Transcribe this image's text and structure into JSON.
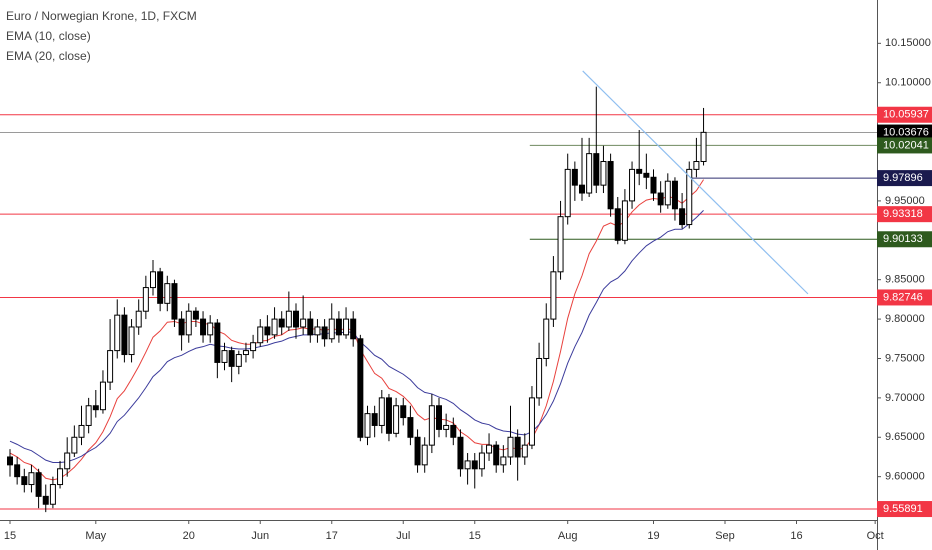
{
  "chart_data": {
    "type": "candlestick",
    "title": "Euro / Norwegian Krone, 1D, FXCM",
    "xlim": [
      -1,
      121.5
    ],
    "ylim": [
      9.545,
      10.205
    ],
    "yticks": [
      {
        "value": 10.15,
        "label": "10.15000"
      },
      {
        "value": 10.1,
        "label": "10.10000"
      },
      {
        "value": 9.95,
        "label": "9.95000"
      },
      {
        "value": 9.85,
        "label": "9.85000"
      },
      {
        "value": 9.8,
        "label": "9.80000"
      },
      {
        "value": 9.75,
        "label": "9.75000"
      },
      {
        "value": 9.7,
        "label": "9.70000"
      },
      {
        "value": 9.65,
        "label": "9.65000"
      },
      {
        "value": 9.6,
        "label": "9.60000"
      }
    ],
    "xticks": [
      {
        "value": 0,
        "label": "15"
      },
      {
        "value": 12,
        "label": "May"
      },
      {
        "value": 25,
        "label": "20"
      },
      {
        "value": 35,
        "label": "Jun"
      },
      {
        "value": 45,
        "label": "17"
      },
      {
        "value": 55,
        "label": "Jul"
      },
      {
        "value": 65,
        "label": "15"
      },
      {
        "value": 78,
        "label": "Aug"
      },
      {
        "value": 90,
        "label": "19"
      },
      {
        "value": 100,
        "label": "Sep"
      },
      {
        "value": 110,
        "label": "16"
      },
      {
        "value": 121,
        "label": "Oct"
      }
    ],
    "up_color": "#ffffff",
    "down_color": "#000000",
    "candles": [
      [
        9.625,
        9.635,
        9.6,
        9.615
      ],
      [
        9.615,
        9.625,
        9.59,
        9.6
      ],
      [
        9.6,
        9.61,
        9.58,
        9.59
      ],
      [
        9.59,
        9.615,
        9.58,
        9.605
      ],
      [
        9.605,
        9.61,
        9.56,
        9.575
      ],
      [
        9.575,
        9.59,
        9.555,
        9.565
      ],
      [
        9.565,
        9.6,
        9.56,
        9.59
      ],
      [
        9.59,
        9.62,
        9.585,
        9.61
      ],
      [
        9.61,
        9.65,
        9.6,
        9.63
      ],
      [
        9.63,
        9.665,
        9.625,
        9.65
      ],
      [
        9.65,
        9.69,
        9.64,
        9.665
      ],
      [
        9.665,
        9.7,
        9.655,
        9.69
      ],
      [
        9.69,
        9.71,
        9.675,
        9.685
      ],
      [
        9.685,
        9.735,
        9.68,
        9.72
      ],
      [
        9.72,
        9.8,
        9.71,
        9.76
      ],
      [
        9.76,
        9.825,
        9.75,
        9.805
      ],
      [
        9.805,
        9.815,
        9.745,
        9.755
      ],
      [
        9.755,
        9.8,
        9.745,
        9.79
      ],
      [
        9.79,
        9.825,
        9.78,
        9.81
      ],
      [
        9.81,
        9.855,
        9.8,
        9.84
      ],
      [
        9.84,
        9.875,
        9.83,
        9.86
      ],
      [
        9.86,
        9.865,
        9.81,
        9.82
      ],
      [
        9.82,
        9.855,
        9.81,
        9.845
      ],
      [
        9.845,
        9.85,
        9.79,
        9.8
      ],
      [
        9.8,
        9.81,
        9.76,
        9.78
      ],
      [
        9.78,
        9.82,
        9.77,
        9.81
      ],
      [
        9.81,
        9.815,
        9.79,
        9.8
      ],
      [
        9.8,
        9.81,
        9.77,
        9.78
      ],
      [
        9.78,
        9.805,
        9.77,
        9.795
      ],
      [
        9.795,
        9.8,
        9.725,
        9.745
      ],
      [
        9.745,
        9.77,
        9.735,
        9.76
      ],
      [
        9.76,
        9.765,
        9.72,
        9.74
      ],
      [
        9.74,
        9.76,
        9.73,
        9.755
      ],
      [
        9.755,
        9.77,
        9.745,
        9.76
      ],
      [
        9.76,
        9.78,
        9.75,
        9.77
      ],
      [
        9.77,
        9.8,
        9.765,
        9.79
      ],
      [
        9.79,
        9.805,
        9.77,
        9.78
      ],
      [
        9.78,
        9.815,
        9.775,
        9.8
      ],
      [
        9.8,
        9.81,
        9.78,
        9.79
      ],
      [
        9.79,
        9.835,
        9.785,
        9.81
      ],
      [
        9.81,
        9.82,
        9.775,
        9.79
      ],
      [
        9.79,
        9.83,
        9.78,
        9.8
      ],
      [
        9.8,
        9.81,
        9.77,
        9.78
      ],
      [
        9.78,
        9.8,
        9.77,
        9.79
      ],
      [
        9.79,
        9.8,
        9.765,
        9.775
      ],
      [
        9.775,
        9.82,
        9.77,
        9.8
      ],
      [
        9.8,
        9.81,
        9.77,
        9.78
      ],
      [
        9.78,
        9.815,
        9.775,
        9.8
      ],
      [
        9.8,
        9.81,
        9.765,
        9.775
      ],
      [
        9.775,
        9.78,
        9.645,
        9.65
      ],
      [
        9.65,
        9.69,
        9.64,
        9.68
      ],
      [
        9.68,
        9.69,
        9.65,
        9.665
      ],
      [
        9.665,
        9.71,
        9.655,
        9.7
      ],
      [
        9.7,
        9.705,
        9.645,
        9.655
      ],
      [
        9.655,
        9.7,
        9.65,
        9.69
      ],
      [
        9.69,
        9.7,
        9.665,
        9.675
      ],
      [
        9.675,
        9.69,
        9.64,
        9.65
      ],
      [
        9.65,
        9.66,
        9.605,
        9.615
      ],
      [
        9.615,
        9.65,
        9.605,
        9.64
      ],
      [
        9.64,
        9.705,
        9.63,
        9.69
      ],
      [
        9.69,
        9.7,
        9.65,
        9.66
      ],
      [
        9.66,
        9.68,
        9.65,
        9.665
      ],
      [
        9.665,
        9.675,
        9.64,
        9.65
      ],
      [
        9.65,
        9.66,
        9.6,
        9.61
      ],
      [
        9.61,
        9.63,
        9.59,
        9.62
      ],
      [
        9.62,
        9.63,
        9.585,
        9.61
      ],
      [
        9.61,
        9.64,
        9.6,
        9.63
      ],
      [
        9.63,
        9.655,
        9.62,
        9.64
      ],
      [
        9.64,
        9.645,
        9.605,
        9.615
      ],
      [
        9.615,
        9.64,
        9.605,
        9.625
      ],
      [
        9.625,
        9.69,
        9.615,
        9.65
      ],
      [
        9.65,
        9.66,
        9.595,
        9.625
      ],
      [
        9.625,
        9.655,
        9.615,
        9.64
      ],
      [
        9.64,
        9.715,
        9.635,
        9.7
      ],
      [
        9.7,
        9.77,
        9.69,
        9.75
      ],
      [
        9.75,
        9.82,
        9.74,
        9.8
      ],
      [
        9.8,
        9.88,
        9.79,
        9.86
      ],
      [
        9.86,
        9.95,
        9.85,
        9.93
      ],
      [
        9.93,
        10.01,
        9.92,
        9.99
      ],
      [
        9.99,
        10.0,
        9.95,
        9.97
      ],
      [
        9.97,
        10.03,
        9.95,
        9.96
      ],
      [
        9.96,
        10.03,
        9.955,
        10.01
      ],
      [
        10.01,
        10.095,
        9.96,
        9.97
      ],
      [
        9.97,
        10.02,
        9.96,
        10.0
      ],
      [
        10.0,
        10.01,
        9.93,
        9.94
      ],
      [
        9.94,
        9.955,
        9.895,
        9.9
      ],
      [
        9.9,
        9.965,
        9.895,
        9.95
      ],
      [
        9.95,
        10.0,
        9.94,
        9.99
      ],
      [
        9.99,
        10.04,
        9.97,
        9.985
      ],
      [
        9.985,
        10.01,
        9.965,
        9.98
      ],
      [
        9.98,
        9.99,
        9.95,
        9.96
      ],
      [
        9.96,
        9.975,
        9.935,
        9.945
      ],
      [
        9.945,
        9.985,
        9.94,
        9.975
      ],
      [
        9.975,
        9.98,
        9.925,
        9.94
      ],
      [
        9.94,
        9.96,
        9.915,
        9.92
      ],
      [
        9.92,
        10.0,
        9.915,
        9.99
      ],
      [
        9.99,
        10.03,
        9.98,
        10.0
      ],
      [
        10.0,
        10.068,
        9.995,
        10.037
      ]
    ],
    "series": [
      {
        "name": "EMA (10, close)",
        "color": "#e8413d",
        "values": [
          9.63,
          9.625,
          9.618,
          9.615,
          9.607,
          9.598,
          9.596,
          9.598,
          9.604,
          9.612,
          9.622,
          9.634,
          9.643,
          9.657,
          9.676,
          9.699,
          9.709,
          9.724,
          9.74,
          9.758,
          9.777,
          9.785,
          9.796,
          9.797,
          9.794,
          9.797,
          9.797,
          9.794,
          9.794,
          9.785,
          9.781,
          9.773,
          9.77,
          9.768,
          9.768,
          9.772,
          9.773,
          9.778,
          9.78,
          9.786,
          9.787,
          9.789,
          9.787,
          9.788,
          9.785,
          9.788,
          9.786,
          9.788,
          9.786,
          9.761,
          9.746,
          9.731,
          9.725,
          9.712,
          9.708,
          9.702,
          9.693,
          9.679,
          9.672,
          9.675,
          9.673,
          9.672,
          9.668,
          9.657,
          9.651,
          9.643,
          9.641,
          9.641,
          9.636,
          9.634,
          9.637,
          9.635,
          9.636,
          9.648,
          9.666,
          9.69,
          9.721,
          9.759,
          9.801,
          9.832,
          9.855,
          9.883,
          9.899,
          9.918,
          9.922,
          9.918,
          9.924,
          9.936,
          9.945,
          9.951,
          9.953,
          9.952,
          9.956,
          9.953,
          9.947,
          9.955,
          9.963,
          9.977
        ]
      },
      {
        "name": "EMA (20, close)",
        "color": "#3c3c9c",
        "values": [
          9.645,
          9.641,
          9.636,
          9.633,
          9.627,
          9.621,
          9.618,
          9.618,
          9.619,
          9.622,
          9.626,
          9.632,
          9.637,
          9.645,
          9.655,
          9.67,
          9.678,
          9.689,
          9.7,
          9.713,
          9.727,
          9.735,
          9.746,
          9.751,
          9.754,
          9.759,
          9.763,
          9.765,
          9.768,
          9.766,
          9.765,
          9.763,
          9.762,
          9.762,
          9.763,
          9.765,
          9.767,
          9.77,
          9.772,
          9.776,
          9.778,
          9.78,
          9.78,
          9.781,
          9.781,
          9.783,
          9.782,
          9.784,
          9.783,
          9.771,
          9.763,
          9.754,
          9.749,
          9.74,
          9.735,
          9.73,
          9.723,
          9.713,
          9.707,
          9.705,
          9.701,
          9.698,
          9.693,
          9.685,
          9.679,
          9.672,
          9.668,
          9.666,
          9.661,
          9.658,
          9.657,
          9.654,
          9.653,
          9.657,
          9.666,
          9.679,
          9.696,
          9.718,
          9.744,
          9.765,
          9.783,
          9.805,
          9.821,
          9.838,
          9.847,
          9.852,
          9.861,
          9.874,
          9.884,
          9.893,
          9.899,
          9.904,
          9.911,
          9.914,
          9.914,
          9.921,
          9.929,
          9.938
        ]
      }
    ],
    "levels": [
      {
        "value": 10.05937,
        "color": "#f23645",
        "label_color": "#f23645"
      },
      {
        "value": 10.03676,
        "color": "#9a9a9a",
        "label_color": "#000000"
      },
      {
        "value": 10.02041,
        "color": "#6f8a5f",
        "label_color": "#2e5a1e",
        "from": 72.7
      },
      {
        "value": 9.97896,
        "color": "#2f2f6f",
        "label_color": "#1a1a4e",
        "from": 94.8
      },
      {
        "value": 9.93318,
        "color": "#f23645",
        "label_color": "#f23645"
      },
      {
        "value": 9.90133,
        "color": "#2e5a1e",
        "label_color": "#2e5a1e",
        "from": 72.7
      },
      {
        "value": 9.82746,
        "color": "#f23645",
        "label_color": "#f23645"
      },
      {
        "value": 9.55891,
        "color": "#f23645",
        "label_color": "#f23645"
      }
    ],
    "trendline": {
      "x": [
        80.1,
        111.6
      ],
      "y": [
        10.115,
        9.832
      ],
      "color": "#90bff0"
    }
  }
}
